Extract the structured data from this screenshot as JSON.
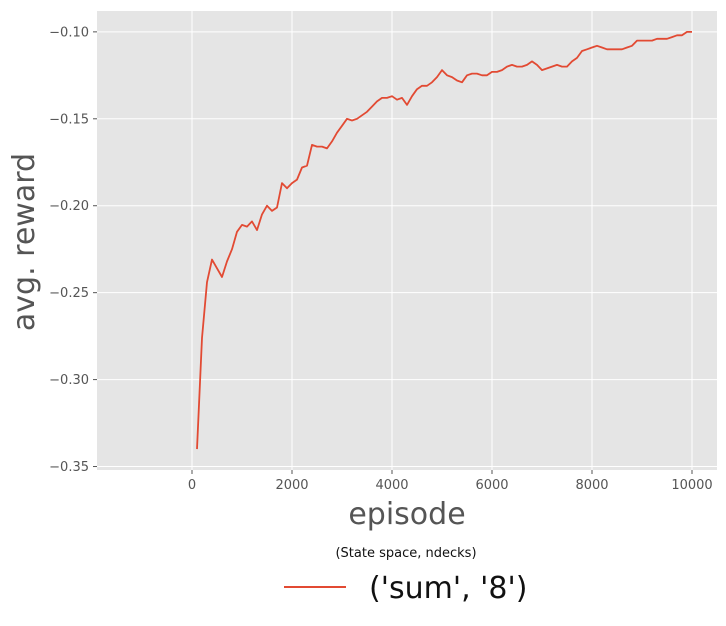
{
  "chart_data": {
    "type": "line",
    "title": "",
    "xlabel": "episode",
    "ylabel": "avg. reward",
    "xlim": [
      -1900,
      10500
    ],
    "ylim": [
      -0.352,
      -0.088
    ],
    "xticks": [
      0,
      2000,
      4000,
      6000,
      8000,
      10000
    ],
    "yticks": [
      -0.35,
      -0.3,
      -0.25,
      -0.2,
      -0.15,
      -0.1
    ],
    "xtick_labels": [
      "0",
      "2000",
      "4000",
      "6000",
      "8000",
      "10000"
    ],
    "ytick_labels": [
      "−0.35",
      "−0.30",
      "−0.25",
      "−0.20",
      "−0.15",
      "−0.10"
    ],
    "grid": true,
    "legend": {
      "placement": "bottom-center",
      "title": "(State space, ndecks)",
      "entries": [
        "('sum', '8')"
      ]
    },
    "colors": {
      "background": "#e5e5e5",
      "grid": "#ffffff",
      "series": "#e24a33"
    },
    "series": [
      {
        "name": "('sum', '8')",
        "x": [
          100,
          200,
          300,
          400,
          500,
          600,
          700,
          800,
          900,
          1000,
          1100,
          1200,
          1300,
          1400,
          1500,
          1600,
          1700,
          1800,
          1900,
          2000,
          2100,
          2200,
          2300,
          2400,
          2500,
          2600,
          2700,
          2800,
          2900,
          3000,
          3100,
          3200,
          3300,
          3400,
          3500,
          3600,
          3700,
          3800,
          3900,
          4000,
          4100,
          4200,
          4300,
          4400,
          4500,
          4600,
          4700,
          4800,
          4900,
          5000,
          5100,
          5200,
          5300,
          5400,
          5500,
          5600,
          5700,
          5800,
          5900,
          6000,
          6100,
          6200,
          6300,
          6400,
          6500,
          6600,
          6700,
          6800,
          6900,
          7000,
          7100,
          7200,
          7300,
          7400,
          7500,
          7600,
          7700,
          7800,
          7900,
          8000,
          8100,
          8200,
          8300,
          8400,
          8500,
          8600,
          8700,
          8800,
          8900,
          9000,
          9100,
          9200,
          9300,
          9400,
          9500,
          9600,
          9700,
          9800,
          9900,
          10000
        ],
        "values": [
          -0.34,
          -0.276,
          -0.244,
          -0.231,
          -0.236,
          -0.241,
          -0.232,
          -0.225,
          -0.215,
          -0.211,
          -0.212,
          -0.209,
          -0.214,
          -0.205,
          -0.2,
          -0.203,
          -0.201,
          -0.187,
          -0.19,
          -0.187,
          -0.185,
          -0.178,
          -0.177,
          -0.165,
          -0.166,
          -0.166,
          -0.167,
          -0.163,
          -0.158,
          -0.154,
          -0.15,
          -0.151,
          -0.15,
          -0.148,
          -0.146,
          -0.143,
          -0.14,
          -0.138,
          -0.138,
          -0.137,
          -0.139,
          -0.138,
          -0.142,
          -0.137,
          -0.133,
          -0.131,
          -0.131,
          -0.129,
          -0.126,
          -0.122,
          -0.125,
          -0.126,
          -0.128,
          -0.129,
          -0.125,
          -0.124,
          -0.124,
          -0.125,
          -0.125,
          -0.123,
          -0.123,
          -0.122,
          -0.12,
          -0.119,
          -0.12,
          -0.12,
          -0.119,
          -0.117,
          -0.119,
          -0.122,
          -0.121,
          -0.12,
          -0.119,
          -0.12,
          -0.12,
          -0.117,
          -0.115,
          -0.111,
          -0.11,
          -0.109,
          -0.108,
          -0.109,
          -0.11,
          -0.11,
          -0.11,
          -0.11,
          -0.109,
          -0.108,
          -0.105,
          -0.105,
          -0.105,
          -0.105,
          -0.104,
          -0.104,
          -0.104,
          -0.103,
          -0.102,
          -0.102,
          -0.1,
          -0.1
        ]
      }
    ]
  }
}
